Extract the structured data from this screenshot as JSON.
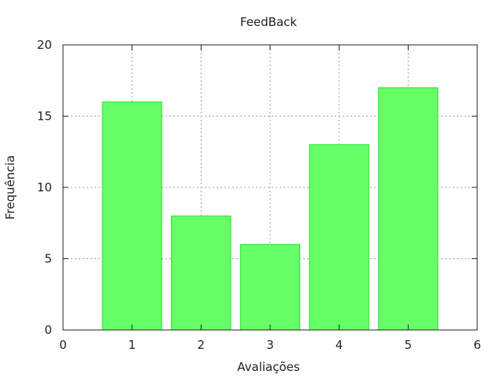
{
  "chart_data": {
    "type": "bar",
    "title": "FeedBack",
    "xlabel": "Avaliações",
    "ylabel": "Frequência",
    "x": [
      1,
      2,
      3,
      4,
      5
    ],
    "values": [
      16,
      8,
      6,
      13,
      17
    ],
    "xlim": [
      0,
      6
    ],
    "ylim": [
      0,
      20
    ],
    "xticks": [
      "0",
      "1",
      "2",
      "3",
      "4",
      "5",
      "6"
    ],
    "yticks": [
      "0",
      "5",
      "10",
      "15",
      "20"
    ],
    "grid": true,
    "bar_fill": "#66ff66",
    "bar_stroke": "#33dd33",
    "grid_color": "#a0a0a0",
    "axis_color": "#222222",
    "background": "#ffffff"
  }
}
